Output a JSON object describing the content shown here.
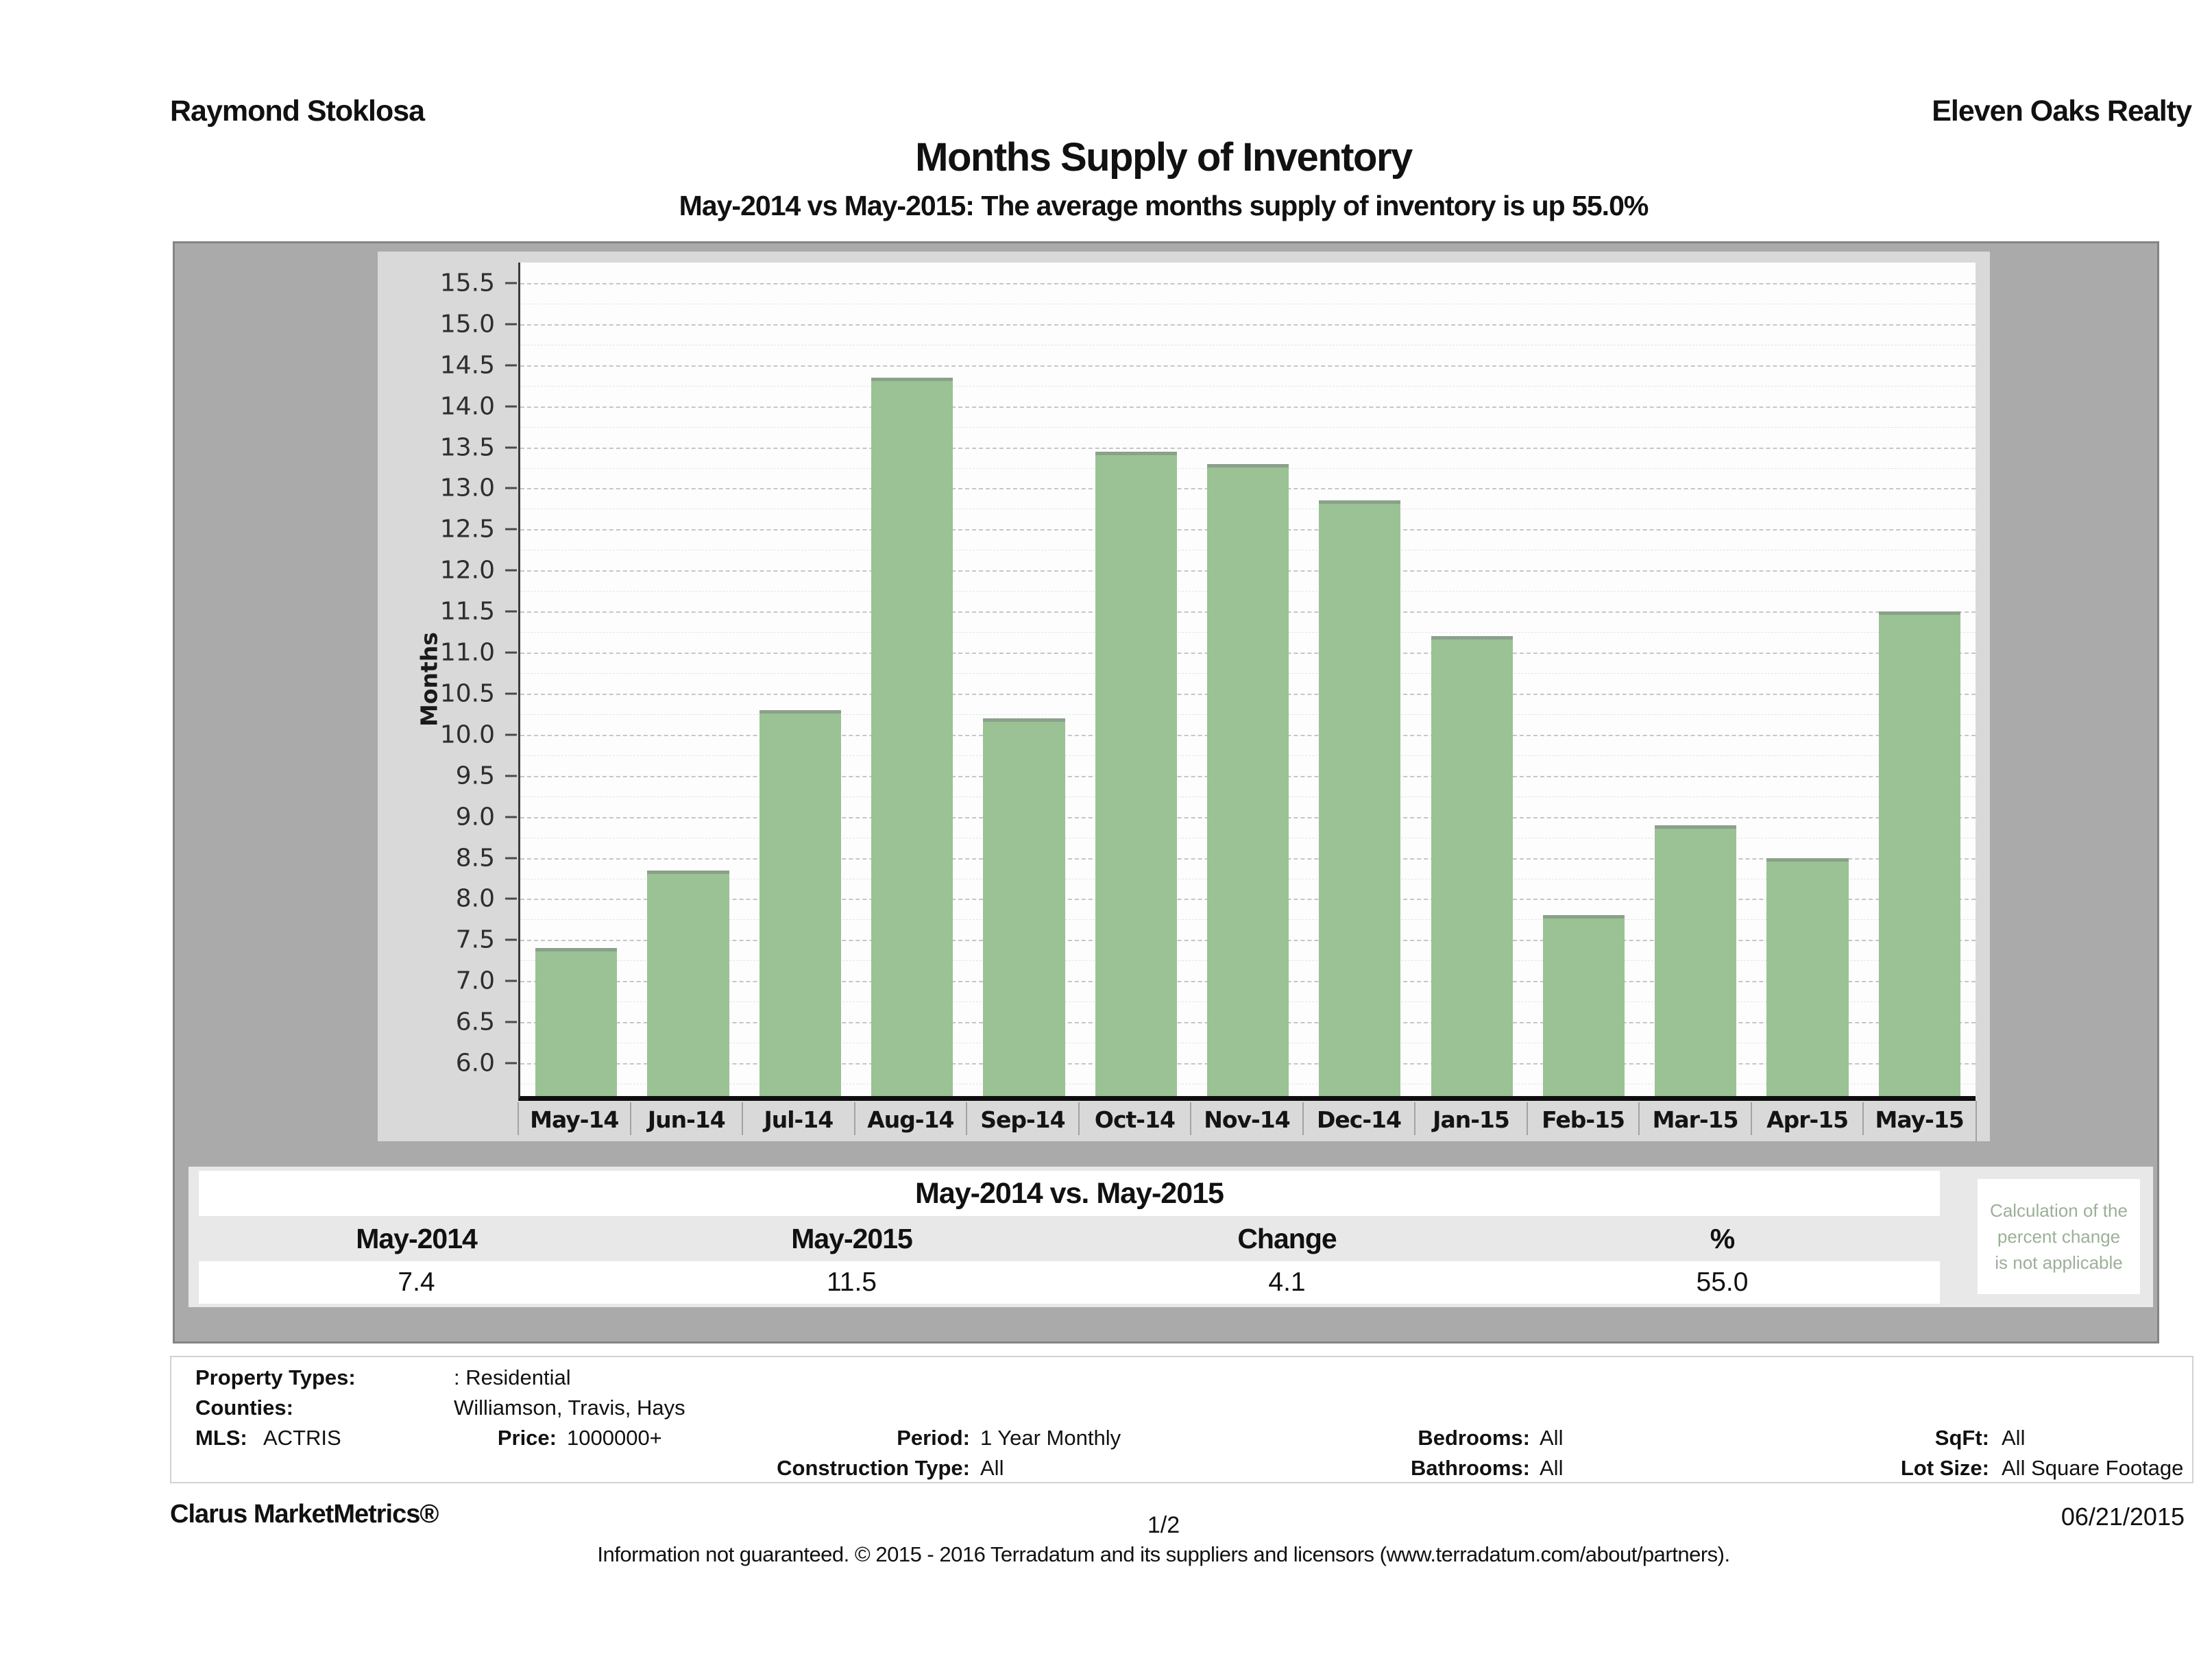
{
  "header": {
    "left": "Raymond Stoklosa",
    "right": "Eleven Oaks Realty"
  },
  "title": "Months Supply of Inventory",
  "subtitle": "May-2014 vs May-2015: The average months supply of inventory is up 55.0%",
  "chart_data": {
    "type": "bar",
    "title": "Months Supply of Inventory",
    "categories": [
      "May-14",
      "Jun-14",
      "Jul-14",
      "Aug-14",
      "Sep-14",
      "Oct-14",
      "Nov-14",
      "Dec-14",
      "Jan-15",
      "Feb-15",
      "Mar-15",
      "Apr-15",
      "May-15"
    ],
    "values": [
      7.4,
      8.35,
      10.3,
      14.35,
      10.2,
      13.45,
      13.3,
      12.85,
      11.2,
      7.8,
      8.9,
      8.5,
      11.5
    ],
    "xlabel": "",
    "ylabel": "Months",
    "ylim": [
      5.6,
      15.75
    ],
    "ytick_min": 6.0,
    "ytick_max": 15.5,
    "ytick_step": 0.5,
    "grid": "dashed-horizontal-major-with-faint-minor",
    "legend_position": "none",
    "bar_color": "#9ac294",
    "bar_top_color": "#8ca08c"
  },
  "comparison_table": {
    "title": "May-2014 vs. May-2015",
    "columns": [
      "May-2014",
      "May-2015",
      "Change",
      "%"
    ],
    "values": [
      "7.4",
      "11.5",
      "4.1",
      "55.0"
    ]
  },
  "note": {
    "lines": [
      "Calculation of the",
      "percent change",
      "is not applicable"
    ],
    "color": "#9cb098"
  },
  "criteria": {
    "property_types_label": "Property Types:",
    "property_types_value": ": Residential",
    "counties_label": "Counties:",
    "counties_value": "Williamson, Travis, Hays",
    "mls_label": "MLS:",
    "mls_value": "ACTRIS",
    "price_label": "Price:",
    "price_value": "1000000+",
    "period_label": "Period:",
    "period_value": "1 Year Monthly",
    "bedrooms_label": "Bedrooms:",
    "bedrooms_value": "All",
    "sqft_label": "SqFt:",
    "sqft_value": "All",
    "construction_label": "Construction Type:",
    "construction_value": "All",
    "bathrooms_label": "Bathrooms:",
    "bathrooms_value": "All",
    "lotsize_label": "Lot Size:",
    "lotsize_value": "All Square Footage"
  },
  "footer": {
    "brand": "Clarus MarketMetrics®",
    "page": "1/2",
    "date": "06/21/2015",
    "disclaimer": "Information not guaranteed. © 2015 - 2016 Terradatum and its suppliers and licensors (www.terradatum.com/about/partners)."
  }
}
